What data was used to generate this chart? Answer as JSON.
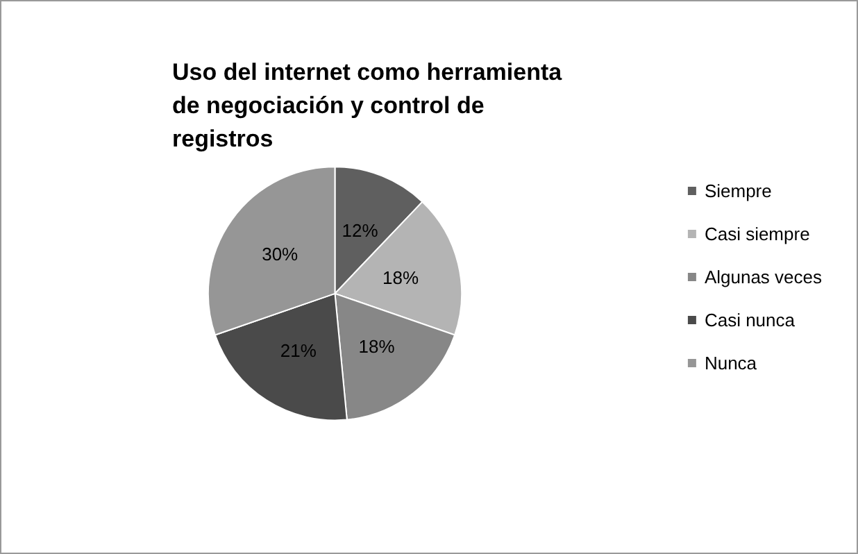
{
  "chart_data": {
    "type": "pie",
    "title": "Uso del internet como herramienta de negociación y control de registros",
    "categories": [
      "Siempre",
      "Casi siempre",
      "Algunas veces",
      "Casi nunca",
      "Nunca"
    ],
    "values": [
      12,
      18,
      18,
      21,
      30
    ],
    "value_labels": [
      "12%",
      "18%",
      "18%",
      "21%",
      "30%"
    ],
    "colors": [
      "#5f5f5f",
      "#b4b4b4",
      "#878787",
      "#4a4a4a",
      "#969696"
    ],
    "legend": "right"
  }
}
